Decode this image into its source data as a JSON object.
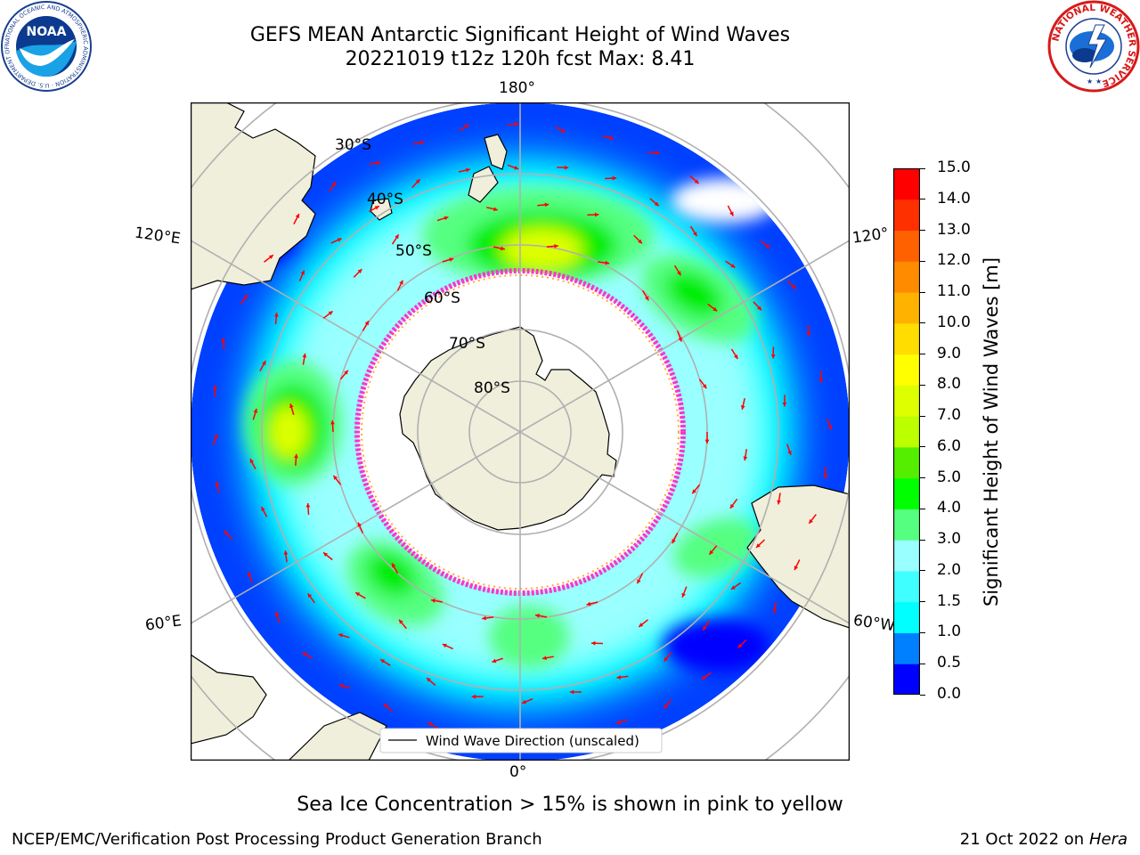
{
  "header": {
    "title_line1": "GEFS MEAN Antarctic Significant Height of Wind Waves",
    "title_line2": "20221019 t12z 120h fcst   Max: 8.41"
  },
  "logos": {
    "left": {
      "name": "NOAA",
      "ring_text": "NATIONAL OCEANIC AND ATMOSPHERIC ADMINISTRATION · U.S. DEPARTMENT OF COMMERCE"
    },
    "right": {
      "ring_text": "NATIONAL WEATHER SERVICE"
    }
  },
  "map": {
    "lon_labels": {
      "top": "180°",
      "bottom": "0°",
      "upper_left": "120°E",
      "upper_right": "120°",
      "lower_left": "60°E",
      "lower_right": "60°W"
    },
    "lat_labels": [
      "30°S",
      "40°S",
      "50°S",
      "60°S",
      "70°S",
      "80°S"
    ],
    "legend_entry": "Wind Wave Direction (unscaled)",
    "arrow_color": "#ff0000",
    "land_color": "#efefdc",
    "ice_edge_color": "#ff33cc"
  },
  "colorbar": {
    "label": "Significant Height of Wind Waves [m]",
    "ticks": [
      "0.0",
      "0.5",
      "1.0",
      "1.5",
      "2.0",
      "3.0",
      "4.0",
      "5.0",
      "6.0",
      "7.0",
      "8.0",
      "9.0",
      "10.0",
      "11.0",
      "12.0",
      "13.0",
      "14.0",
      "15.0"
    ],
    "colors": [
      "#0000ff",
      "#0080ff",
      "#00ffff",
      "#40ffff",
      "#99ffff",
      "#55ff80",
      "#00ff00",
      "#55ee00",
      "#bbff00",
      "#ddff00",
      "#ffff00",
      "#ffdd00",
      "#ffb300",
      "#ff8c00",
      "#ff6000",
      "#ff3000",
      "#ff0000"
    ]
  },
  "footer": {
    "caption": "Sea Ice Concentration > 15% is shown in pink to yellow",
    "left": "NCEP/EMC/Verification Post Processing Product Generation Branch",
    "right_prefix": "21 Oct 2022 on ",
    "right_host": "Hera"
  }
}
